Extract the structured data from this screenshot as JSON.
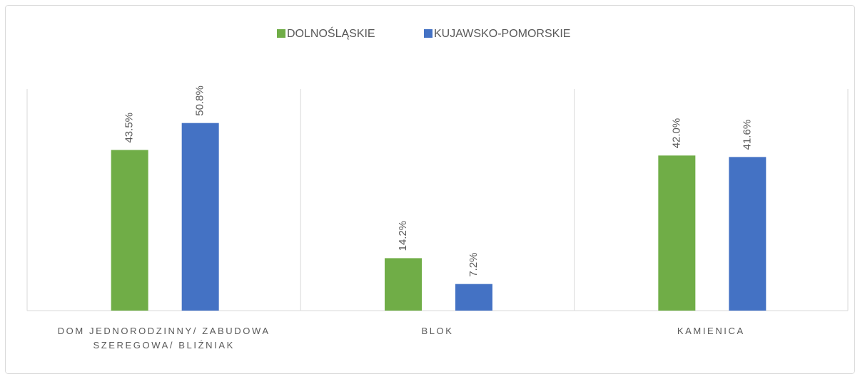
{
  "chart_data": {
    "type": "bar",
    "categories": [
      "DOM JEDNORODZINNY/ ZABUDOWA SZEREGOWA/ BLIŹNIAK",
      "BLOK",
      "KAMIENICA"
    ],
    "series": [
      {
        "name": "DOLNOŚLĄSKIE",
        "color": "#70ad47",
        "values": [
          43.5,
          14.2,
          42.0
        ],
        "value_labels": [
          "43.5%",
          "14.2%",
          "42.0%"
        ]
      },
      {
        "name": "KUJAWSKO-POMORSKIE",
        "color": "#4472c4",
        "values": [
          50.8,
          7.2,
          41.6
        ],
        "value_labels": [
          "50.8%",
          "7.2%",
          "41.6%"
        ]
      }
    ],
    "ylim": [
      0,
      60
    ],
    "legend": "top"
  }
}
